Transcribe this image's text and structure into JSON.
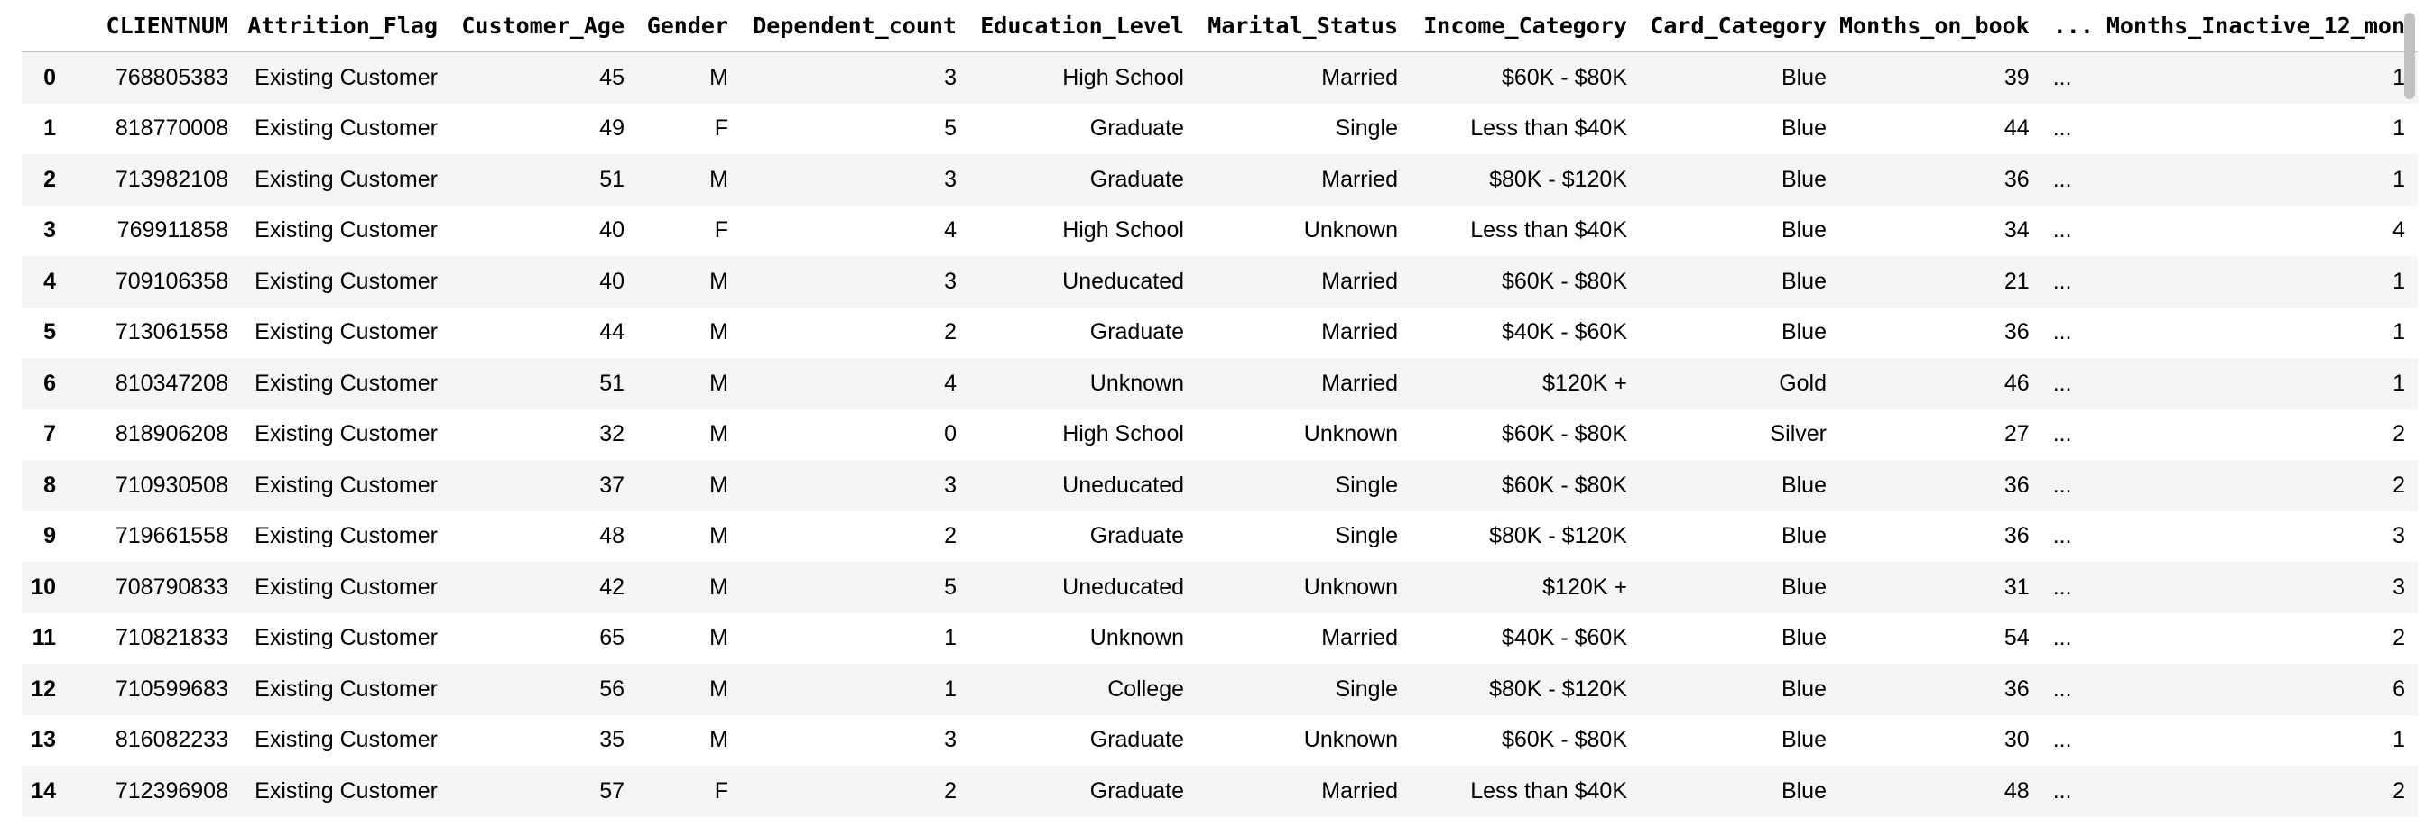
{
  "table": {
    "index_header": "",
    "columns": [
      "CLIENTNUM",
      "Attrition_Flag",
      "Customer_Age",
      "Gender",
      "Dependent_count",
      "Education_Level",
      "Marital_Status",
      "Income_Category",
      "Card_Category",
      "Months_on_book",
      "...",
      "Months_Inactive_12_mon"
    ],
    "rows": [
      {
        "index": "0",
        "cells": [
          "768805383",
          "Existing Customer",
          "45",
          "M",
          "3",
          "High School",
          "Married",
          "$60K - $80K",
          "Blue",
          "39",
          "...",
          "1"
        ]
      },
      {
        "index": "1",
        "cells": [
          "818770008",
          "Existing Customer",
          "49",
          "F",
          "5",
          "Graduate",
          "Single",
          "Less than $40K",
          "Blue",
          "44",
          "...",
          "1"
        ]
      },
      {
        "index": "2",
        "cells": [
          "713982108",
          "Existing Customer",
          "51",
          "M",
          "3",
          "Graduate",
          "Married",
          "$80K - $120K",
          "Blue",
          "36",
          "...",
          "1"
        ]
      },
      {
        "index": "3",
        "cells": [
          "769911858",
          "Existing Customer",
          "40",
          "F",
          "4",
          "High School",
          "Unknown",
          "Less than $40K",
          "Blue",
          "34",
          "...",
          "4"
        ]
      },
      {
        "index": "4",
        "cells": [
          "709106358",
          "Existing Customer",
          "40",
          "M",
          "3",
          "Uneducated",
          "Married",
          "$60K - $80K",
          "Blue",
          "21",
          "...",
          "1"
        ]
      },
      {
        "index": "5",
        "cells": [
          "713061558",
          "Existing Customer",
          "44",
          "M",
          "2",
          "Graduate",
          "Married",
          "$40K - $60K",
          "Blue",
          "36",
          "...",
          "1"
        ]
      },
      {
        "index": "6",
        "cells": [
          "810347208",
          "Existing Customer",
          "51",
          "M",
          "4",
          "Unknown",
          "Married",
          "$120K +",
          "Gold",
          "46",
          "...",
          "1"
        ]
      },
      {
        "index": "7",
        "cells": [
          "818906208",
          "Existing Customer",
          "32",
          "M",
          "0",
          "High School",
          "Unknown",
          "$60K - $80K",
          "Silver",
          "27",
          "...",
          "2"
        ]
      },
      {
        "index": "8",
        "cells": [
          "710930508",
          "Existing Customer",
          "37",
          "M",
          "3",
          "Uneducated",
          "Single",
          "$60K - $80K",
          "Blue",
          "36",
          "...",
          "2"
        ]
      },
      {
        "index": "9",
        "cells": [
          "719661558",
          "Existing Customer",
          "48",
          "M",
          "2",
          "Graduate",
          "Single",
          "$80K - $120K",
          "Blue",
          "36",
          "...",
          "3"
        ]
      },
      {
        "index": "10",
        "cells": [
          "708790833",
          "Existing Customer",
          "42",
          "M",
          "5",
          "Uneducated",
          "Unknown",
          "$120K +",
          "Blue",
          "31",
          "...",
          "3"
        ]
      },
      {
        "index": "11",
        "cells": [
          "710821833",
          "Existing Customer",
          "65",
          "M",
          "1",
          "Unknown",
          "Married",
          "$40K - $60K",
          "Blue",
          "54",
          "...",
          "2"
        ]
      },
      {
        "index": "12",
        "cells": [
          "710599683",
          "Existing Customer",
          "56",
          "M",
          "1",
          "College",
          "Single",
          "$80K - $120K",
          "Blue",
          "36",
          "...",
          "6"
        ]
      },
      {
        "index": "13",
        "cells": [
          "816082233",
          "Existing Customer",
          "35",
          "M",
          "3",
          "Graduate",
          "Unknown",
          "$60K - $80K",
          "Blue",
          "30",
          "...",
          "1"
        ]
      },
      {
        "index": "14",
        "cells": [
          "712396908",
          "Existing Customer",
          "57",
          "F",
          "2",
          "Graduate",
          "Married",
          "Less than $40K",
          "Blue",
          "48",
          "...",
          "2"
        ]
      }
    ]
  },
  "colors": {
    "stripe": "#f5f5f5",
    "header_border": "#bdbdbd",
    "scrollbar_thumb": "#c1c1c1"
  }
}
